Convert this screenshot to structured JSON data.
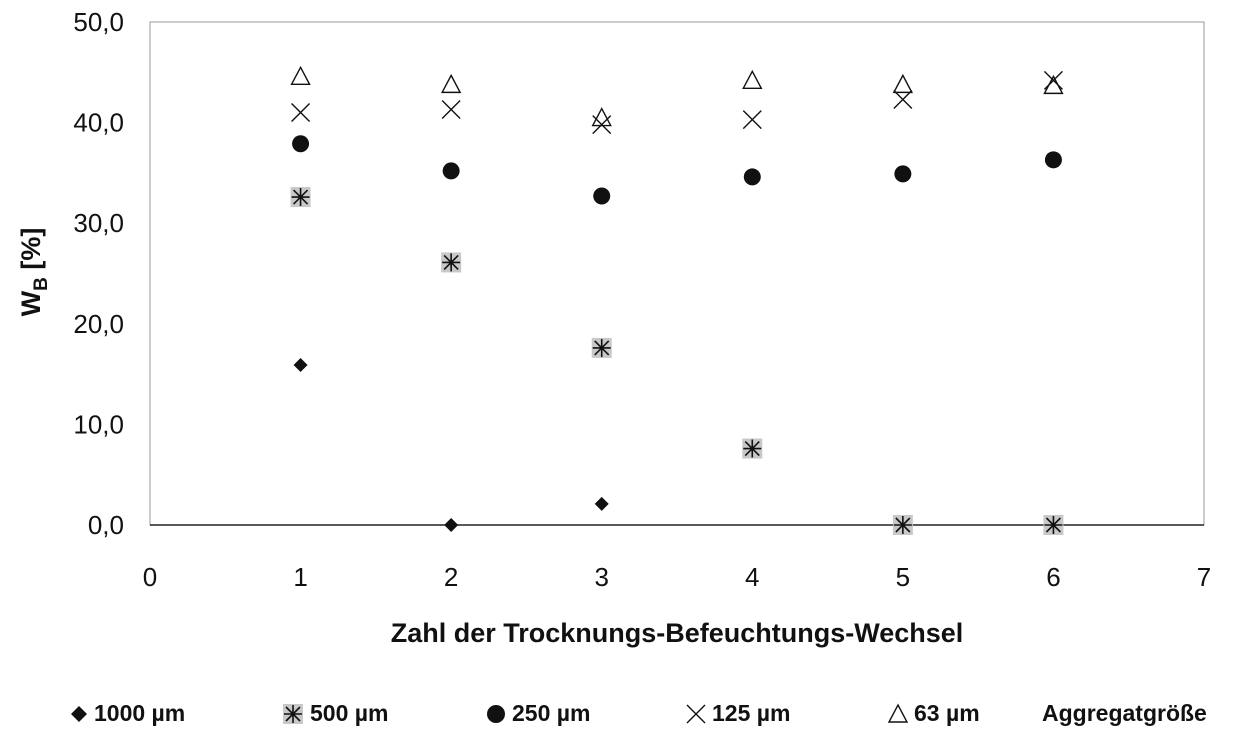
{
  "chart_data": {
    "type": "scatter",
    "xlabel": "Zahl der Trocknungs-Befeuchtungs-Wechsel",
    "ylabel_main": "W",
    "ylabel_sub": "B",
    "ylabel_unit": " [%]",
    "xlim": [
      0,
      7
    ],
    "ylim": [
      0,
      50
    ],
    "x_ticks": [
      "0",
      "1",
      "2",
      "3",
      "4",
      "5",
      "6",
      "7"
    ],
    "y_ticks": [
      "0,0",
      "10,0",
      "20,0",
      "30,0",
      "40,0",
      "50,0"
    ],
    "grid": false,
    "legend_position": "bottom",
    "legend_caption": "Aggregatgröße",
    "series": [
      {
        "name": "1000 µm",
        "marker": "diamond",
        "x": [
          1,
          2,
          3
        ],
        "y": [
          15.9,
          0.0,
          2.1
        ]
      },
      {
        "name": "500 µm",
        "marker": "asterisk-box",
        "x": [
          1,
          2,
          3,
          4,
          5,
          6
        ],
        "y": [
          32.6,
          26.1,
          17.6,
          7.6,
          0.0,
          0.0
        ]
      },
      {
        "name": "250 µm",
        "marker": "circle",
        "x": [
          1,
          2,
          3,
          4,
          5,
          6
        ],
        "y": [
          37.9,
          35.2,
          32.7,
          34.6,
          34.9,
          36.3
        ]
      },
      {
        "name": "125 µm",
        "marker": "x",
        "x": [
          1,
          2,
          3,
          4,
          5,
          6
        ],
        "y": [
          41.0,
          41.3,
          39.8,
          40.3,
          42.3,
          44.2
        ]
      },
      {
        "name": "63 µm",
        "marker": "triangle",
        "x": [
          1,
          2,
          3,
          4,
          5,
          6
        ],
        "y": [
          44.6,
          43.8,
          40.5,
          44.2,
          43.8,
          43.7
        ]
      }
    ]
  }
}
